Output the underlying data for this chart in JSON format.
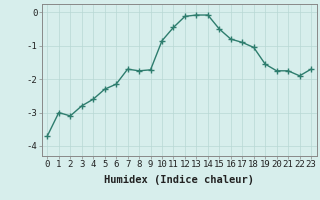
{
  "x": [
    0,
    1,
    2,
    3,
    4,
    5,
    6,
    7,
    8,
    9,
    10,
    11,
    12,
    13,
    14,
    15,
    16,
    17,
    18,
    19,
    20,
    21,
    22,
    23
  ],
  "y": [
    -3.7,
    -3.0,
    -3.1,
    -2.8,
    -2.6,
    -2.3,
    -2.15,
    -1.7,
    -1.75,
    -1.72,
    -0.85,
    -0.45,
    -0.12,
    -0.08,
    -0.08,
    -0.5,
    -0.8,
    -0.9,
    -1.05,
    -1.55,
    -1.75,
    -1.75,
    -1.9,
    -1.7
  ],
  "line_color": "#2e7d6e",
  "marker": "+",
  "marker_size": 4,
  "linewidth": 1.0,
  "bg_color": "#d7eeec",
  "grid_color": "#b8d8d4",
  "xlabel": "Humidex (Indice chaleur)",
  "ylim": [
    -4.3,
    0.25
  ],
  "xlim": [
    -0.5,
    23.5
  ],
  "yticks": [
    0,
    -1,
    -2,
    -3,
    -4
  ],
  "xticks": [
    0,
    1,
    2,
    3,
    4,
    5,
    6,
    7,
    8,
    9,
    10,
    11,
    12,
    13,
    14,
    15,
    16,
    17,
    18,
    19,
    20,
    21,
    22,
    23
  ],
  "tick_fontsize": 6.5,
  "xlabel_fontsize": 7.5,
  "tick_color": "#222222",
  "spine_color": "#888888"
}
